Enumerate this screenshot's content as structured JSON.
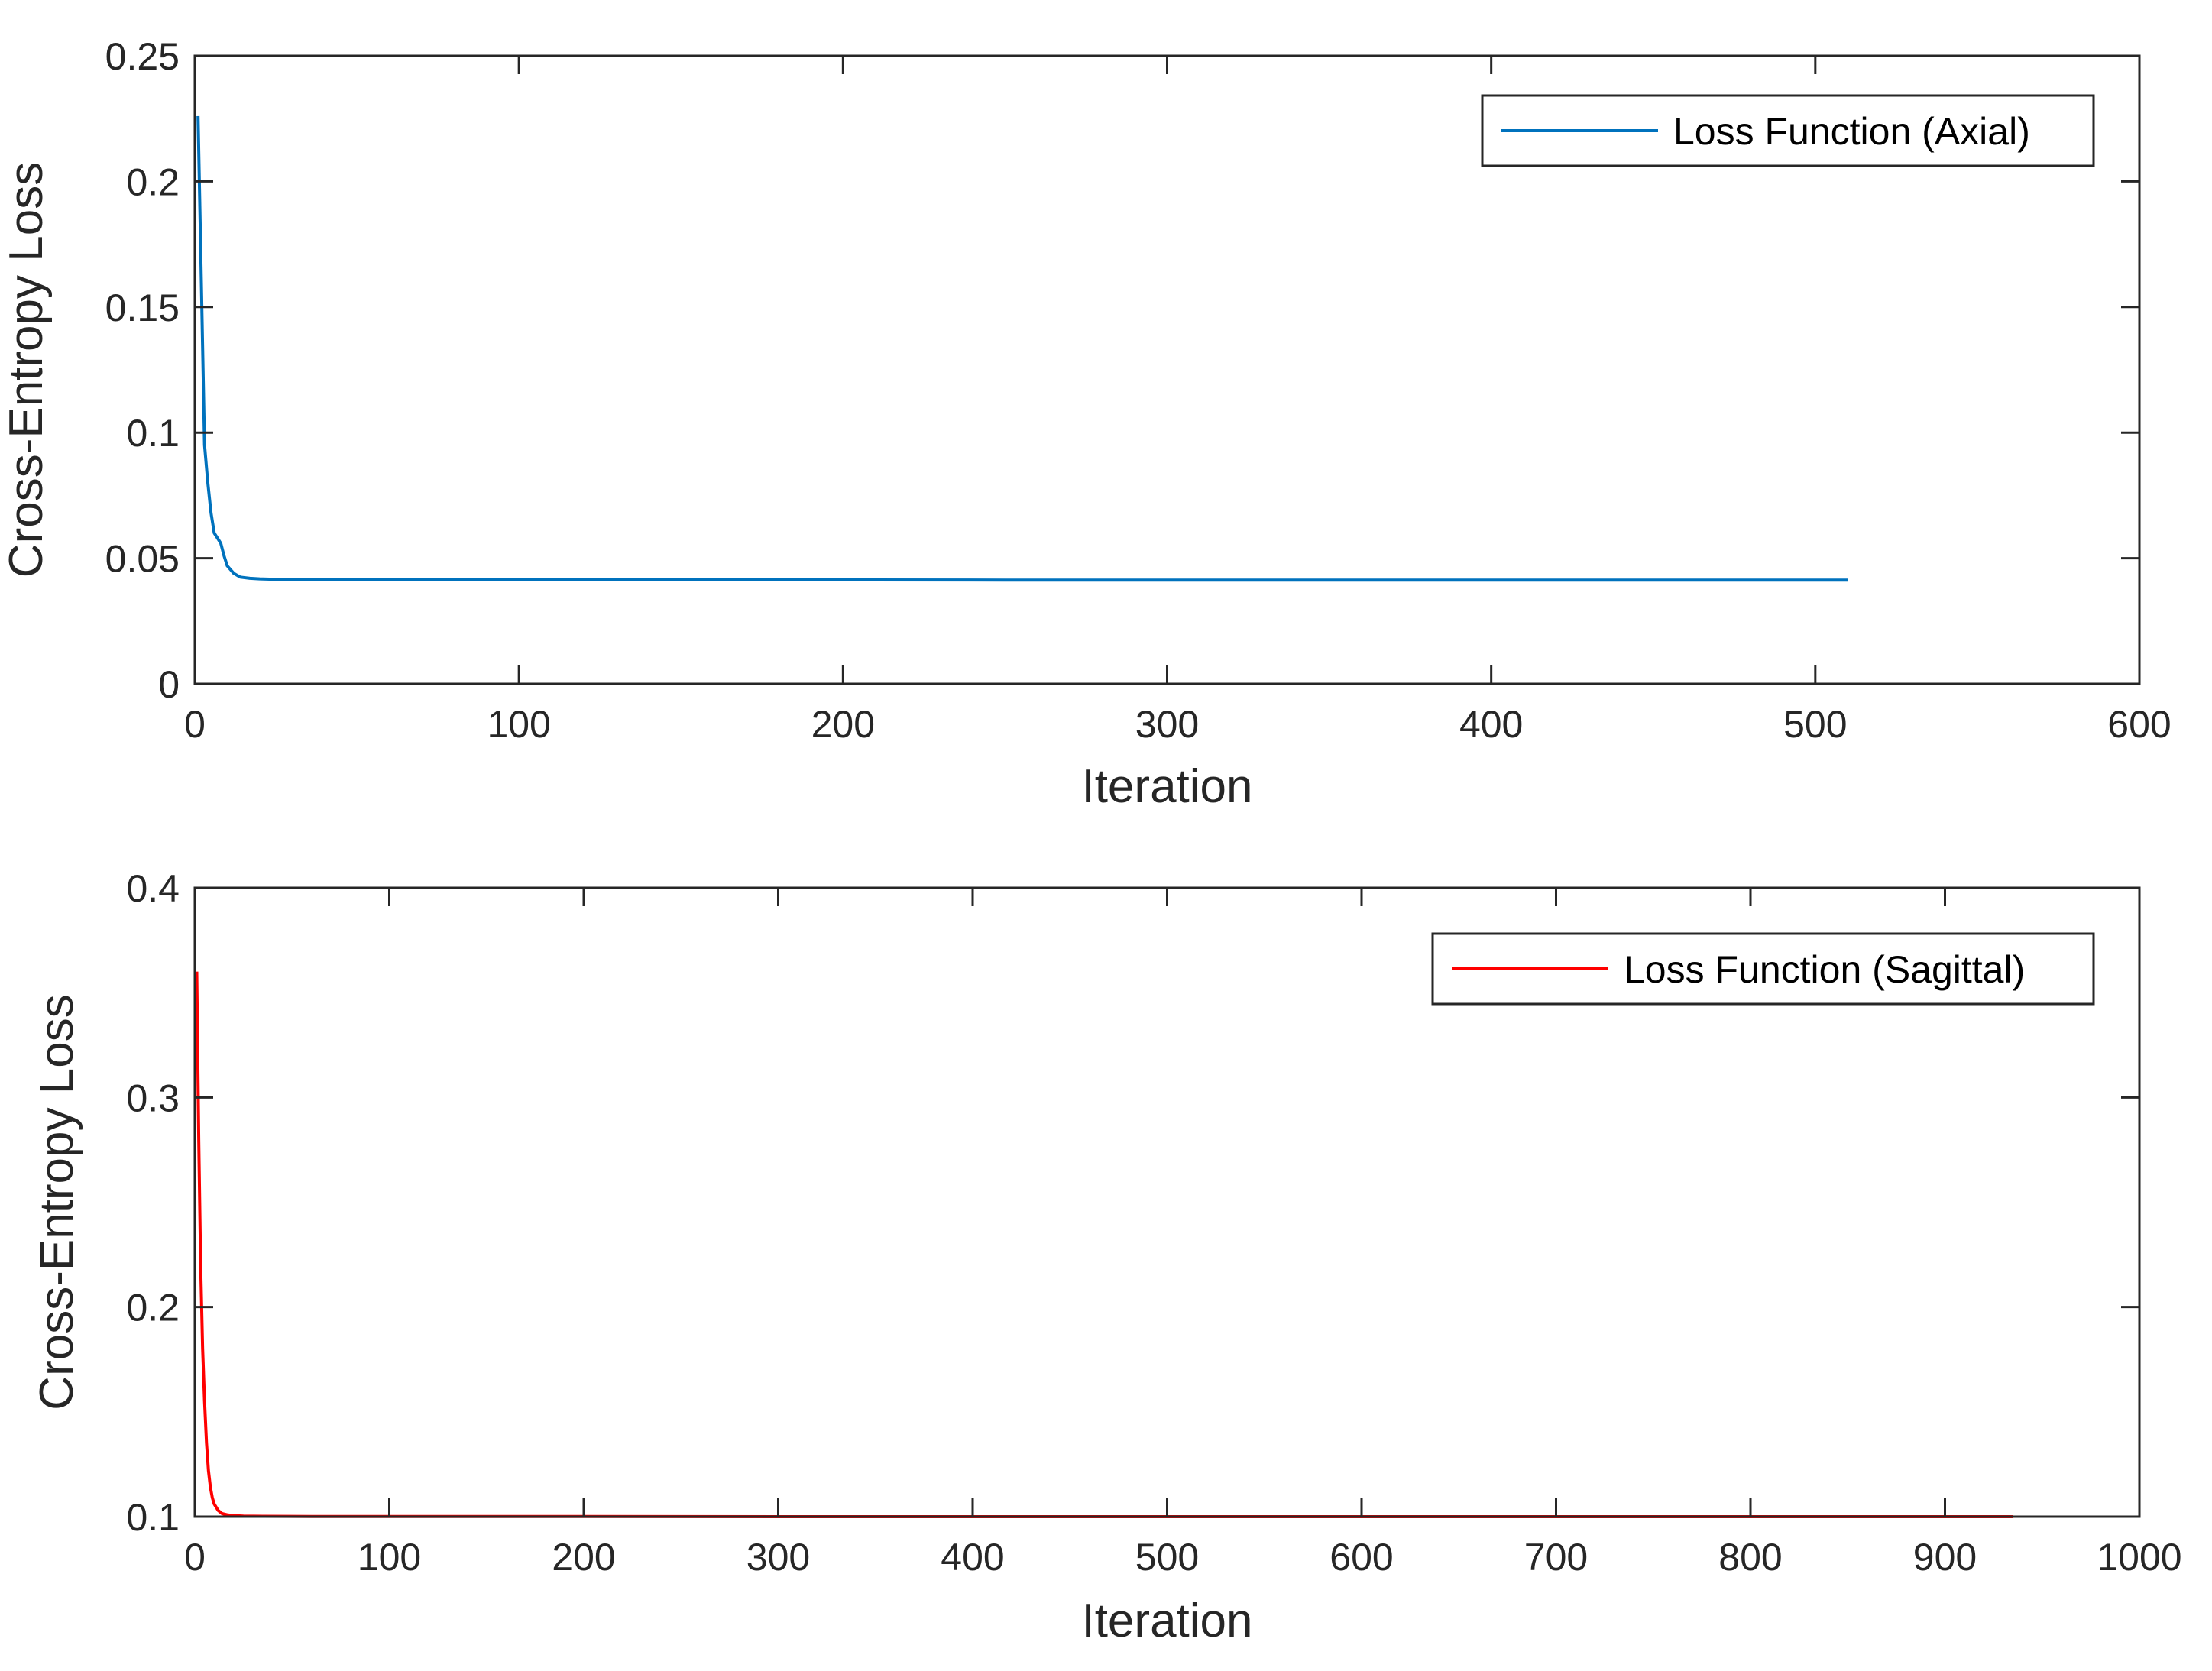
{
  "chart_data": [
    {
      "type": "line",
      "xlabel": "Iteration",
      "ylabel": "Cross-Entropy Loss",
      "xlim": [
        0,
        600
      ],
      "ylim": [
        0,
        0.25
      ],
      "xticks": [
        0,
        100,
        200,
        300,
        400,
        500,
        600
      ],
      "yticks": [
        0,
        0.05,
        0.1,
        0.15,
        0.2,
        0.25
      ],
      "xtick_labels": [
        "0",
        "100",
        "200",
        "300",
        "400",
        "500",
        "600"
      ],
      "ytick_labels": [
        "0",
        "0.05",
        "0.1",
        "0.15",
        "0.2",
        "0.25"
      ],
      "grid": false,
      "legend_position": "top-right",
      "series": [
        {
          "name": "Loss Function (Axial)",
          "color": "#0072BD",
          "x": [
            1,
            2,
            3,
            4,
            5,
            6,
            7,
            8,
            9,
            10,
            12,
            14,
            17,
            20,
            25,
            35,
            60,
            100,
            150,
            200,
            250,
            300,
            350,
            400,
            450,
            500,
            510
          ],
          "y": [
            0.226,
            0.16,
            0.095,
            0.08,
            0.068,
            0.06,
            0.058,
            0.056,
            0.051,
            0.047,
            0.044,
            0.0425,
            0.042,
            0.0418,
            0.0416,
            0.0415,
            0.0414,
            0.0414,
            0.0414,
            0.0414,
            0.0413,
            0.0413,
            0.0413,
            0.0413,
            0.0413,
            0.0413,
            0.0413
          ]
        }
      ]
    },
    {
      "type": "line",
      "xlabel": "Iteration",
      "ylabel": "Cross-Entropy Loss",
      "xlim": [
        0,
        1000
      ],
      "ylim": [
        0.1,
        0.4
      ],
      "xticks": [
        0,
        100,
        200,
        300,
        400,
        500,
        600,
        700,
        800,
        900,
        1000
      ],
      "yticks": [
        0.1,
        0.2,
        0.3,
        0.4
      ],
      "xtick_labels": [
        "0",
        "100",
        "200",
        "300",
        "400",
        "500",
        "600",
        "700",
        "800",
        "900",
        "1000"
      ],
      "ytick_labels": [
        "0.1",
        "0.2",
        "0.3",
        "0.4"
      ],
      "grid": false,
      "legend_position": "top-right",
      "series": [
        {
          "name": "Loss Function (Sagittal)",
          "color": "#FF0000",
          "x": [
            1,
            2,
            3,
            4,
            5,
            6,
            7,
            8,
            9,
            10,
            12,
            14,
            17,
            20,
            25,
            35,
            60,
            100,
            200,
            300,
            400,
            500,
            600,
            700,
            800,
            900,
            935
          ],
          "y": [
            0.36,
            0.28,
            0.22,
            0.18,
            0.155,
            0.135,
            0.122,
            0.114,
            0.109,
            0.106,
            0.103,
            0.1015,
            0.1008,
            0.1005,
            0.1003,
            0.1002,
            0.1001,
            0.1001,
            0.1001,
            0.1,
            0.1,
            0.1,
            0.1,
            0.1,
            0.1,
            0.1,
            0.1
          ]
        }
      ]
    }
  ]
}
